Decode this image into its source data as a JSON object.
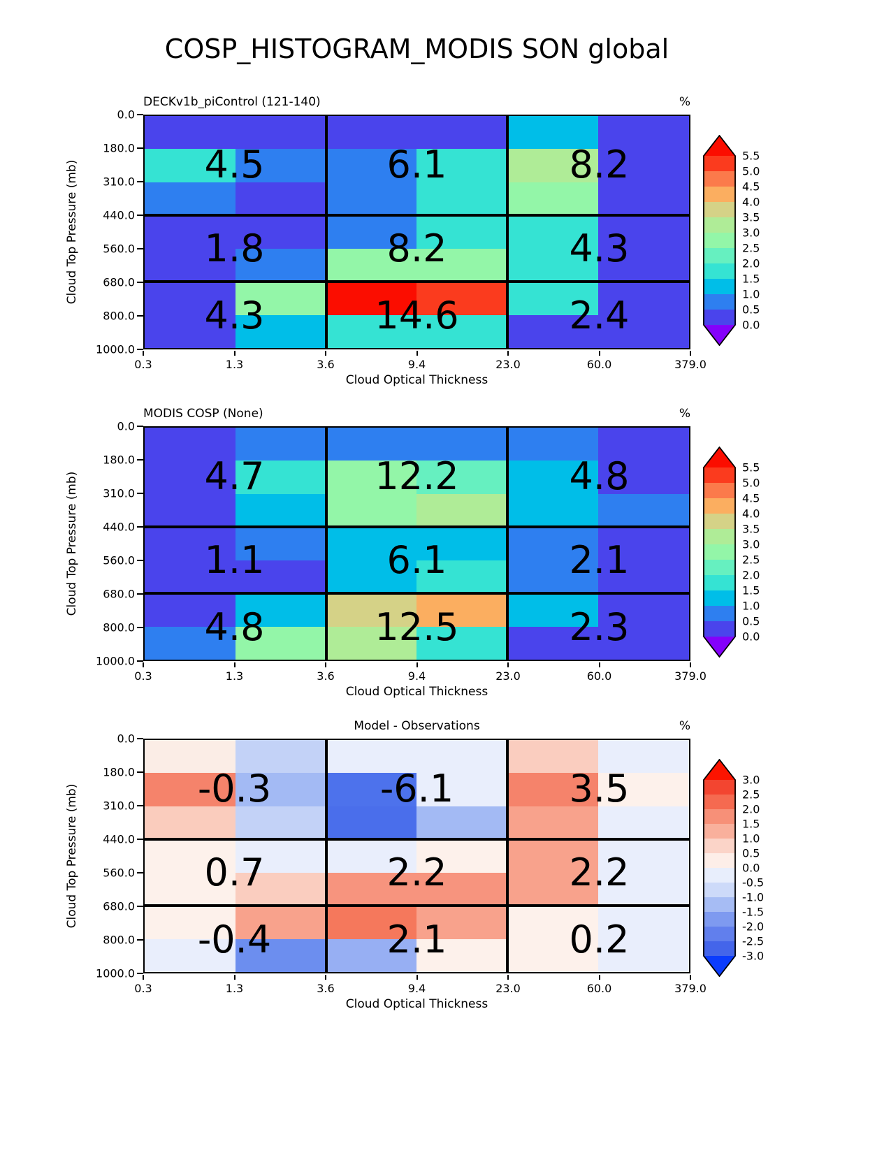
{
  "figure_title": "COSP_HISTOGRAM_MODIS SON global",
  "axes": {
    "xlabel": "Cloud Optical Thickness",
    "ylabel": "Cloud Top Pressure (mb)",
    "x_ticks": [
      "0.3",
      "1.3",
      "3.6",
      "9.4",
      "23.0",
      "60.0",
      "379.0"
    ],
    "y_ticks": [
      "0.0",
      "180.0",
      "310.0",
      "440.0",
      "560.0",
      "680.0",
      "800.0",
      "1000.0"
    ],
    "units_label": "%"
  },
  "panels": [
    {
      "title": "DECKv1b_piControl (121-140)",
      "title_align": "left",
      "values": [
        [
          "4.5",
          "6.1",
          "8.2"
        ],
        [
          "1.8",
          "8.2",
          "4.3"
        ],
        [
          "4.3",
          "14.6",
          "2.4"
        ]
      ],
      "cells": [
        [
          "#4A44EC",
          "#4A44EC",
          "#4A44EC",
          "#4A44EC",
          "#00BEE8",
          "#4A44EC"
        ],
        [
          "#35E3D3",
          "#2E7FF0",
          "#2E7FF0",
          "#35E3D3",
          "#AFEC97",
          "#4A44EC"
        ],
        [
          "#2E7FF0",
          "#4A44EC",
          "#2E7FF0",
          "#35E3D3",
          "#93F6A8",
          "#4A44EC"
        ],
        [
          "#4A44EC",
          "#4A44EC",
          "#2E7FF0",
          "#35E3D3",
          "#35E3D3",
          "#4A44EC"
        ],
        [
          "#4A44EC",
          "#2E7FF0",
          "#93F6A8",
          "#93F6A8",
          "#35E3D3",
          "#4A44EC"
        ],
        [
          "#4A44EC",
          "#93F6A8",
          "#FB0D00",
          "#FB3B1E",
          "#35E3D3",
          "#4A44EC"
        ],
        [
          "#4A44EC",
          "#00BEE8",
          "#35E3D3",
          "#35E3D3",
          "#4A44EC",
          "#4A44EC"
        ]
      ],
      "colorbar": {
        "cap_top": "#FB0D00",
        "cap_bottom": "#8400FB",
        "segments": [
          "#FB3B1E",
          "#FB7A4B",
          "#FBAE60",
          "#D5D287",
          "#AFEC97",
          "#93F6A8",
          "#66F0C0",
          "#35E3D3",
          "#00BEE8",
          "#2E7FF0",
          "#4A44EC"
        ],
        "tick_labels": [
          "5.5",
          "5.0",
          "4.5",
          "4.0",
          "3.5",
          "3.0",
          "2.5",
          "2.0",
          "1.5",
          "1.0",
          "0.5",
          "0.0"
        ]
      }
    },
    {
      "title": "MODIS COSP (None)",
      "title_align": "left",
      "values": [
        [
          "4.7",
          "12.2",
          "4.8"
        ],
        [
          "1.1",
          "6.1",
          "2.1"
        ],
        [
          "4.8",
          "12.5",
          "2.3"
        ]
      ],
      "cells": [
        [
          "#4A44EC",
          "#2E7FF0",
          "#2E7FF0",
          "#2E7FF0",
          "#2E7FF0",
          "#4A44EC"
        ],
        [
          "#4A44EC",
          "#35E3D3",
          "#93F6A8",
          "#66F0C0",
          "#00BEE8",
          "#4A44EC"
        ],
        [
          "#4A44EC",
          "#00BEE8",
          "#93F6A8",
          "#AFEC97",
          "#00BEE8",
          "#2E7FF0"
        ],
        [
          "#4A44EC",
          "#2E7FF0",
          "#00BEE8",
          "#00BEE8",
          "#2E7FF0",
          "#4A44EC"
        ],
        [
          "#4A44EC",
          "#4A44EC",
          "#00BEE8",
          "#35E3D3",
          "#2E7FF0",
          "#4A44EC"
        ],
        [
          "#4A44EC",
          "#00BEE8",
          "#D5D287",
          "#FBAE60",
          "#00BEE8",
          "#4A44EC"
        ],
        [
          "#2E7FF0",
          "#93F6A8",
          "#AFEC97",
          "#35E3D3",
          "#4A44EC",
          "#4A44EC"
        ]
      ],
      "colorbar": {
        "cap_top": "#FB0D00",
        "cap_bottom": "#8400FB",
        "segments": [
          "#FB3B1E",
          "#FB7A4B",
          "#FBAE60",
          "#D5D287",
          "#AFEC97",
          "#93F6A8",
          "#66F0C0",
          "#35E3D3",
          "#00BEE8",
          "#2E7FF0",
          "#4A44EC"
        ],
        "tick_labels": [
          "5.5",
          "5.0",
          "4.5",
          "4.0",
          "3.5",
          "3.0",
          "2.5",
          "2.0",
          "1.5",
          "1.0",
          "0.5",
          "0.0"
        ]
      }
    },
    {
      "title": "Model - Observations",
      "title_align": "center",
      "values": [
        [
          "-0.3",
          "-6.1",
          "3.5"
        ],
        [
          "0.7",
          "2.2",
          "2.2"
        ],
        [
          "-0.4",
          "2.1",
          "0.2"
        ]
      ],
      "cells": [
        [
          "#FBEDE6",
          "#C3D2F7",
          "#E9EEFC",
          "#E9EEFC",
          "#FACDBF",
          "#E9EEFC"
        ],
        [
          "#F5836B",
          "#A3BAF4",
          "#4D72EC",
          "#E9EEFC",
          "#F5836B",
          "#FDF1EB"
        ],
        [
          "#FACCBD",
          "#C3D2F7",
          "#4A6EEB",
          "#A3BAF4",
          "#F8A28C",
          "#E9EEFC"
        ],
        [
          "#FDF1EB",
          "#E9EEFC",
          "#E9EEFC",
          "#FDF1EB",
          "#F8A28C",
          "#E9EEFC"
        ],
        [
          "#FDF1EB",
          "#FACDBF",
          "#F7947E",
          "#F7947E",
          "#F8A28C",
          "#E9EEFC"
        ],
        [
          "#FDF1EB",
          "#F8A28C",
          "#F5785C",
          "#F8A28C",
          "#FDF1EB",
          "#E9EEFC"
        ],
        [
          "#E9EEFC",
          "#6C8EEF",
          "#97AFF3",
          "#FDF1EB",
          "#FDF1EB",
          "#E9EEFC"
        ]
      ],
      "colorbar": {
        "cap_top": "#FC1400",
        "cap_bottom": "#0B3CFD",
        "segments": [
          "#F34530",
          "#F56A50",
          "#F79078",
          "#F9B09C",
          "#FBD4C8",
          "#FDEEE8",
          "#E8EEFC",
          "#CDDAF9",
          "#A6BCF4",
          "#7E9AF0",
          "#617FED",
          "#4465EA"
        ],
        "tick_labels": [
          "3.0",
          "2.5",
          "2.0",
          "1.5",
          "1.0",
          "0.5",
          "0.0",
          "-0.5",
          "-1.0",
          "-1.5",
          "-2.0",
          "-2.5",
          "-3.0"
        ]
      }
    }
  ],
  "chart_data": [
    {
      "type": "heatmap",
      "title": "DECKv1b_piControl (121-140)",
      "xlabel": "Cloud Optical Thickness",
      "ylabel": "Cloud Top Pressure (mb)",
      "units": "%",
      "x_bin_edges": [
        0.3,
        1.3,
        3.6,
        9.4,
        23.0,
        60.0,
        379.0
      ],
      "y_bin_edges": [
        0.0,
        180.0,
        310.0,
        440.0,
        560.0,
        680.0,
        800.0,
        1000.0
      ],
      "colorbar_range": [
        0.0,
        5.5
      ],
      "colorbar_step": 0.5,
      "colorbar_extend": "both",
      "block_values": [
        [
          4.5,
          6.1,
          8.2
        ],
        [
          1.8,
          8.2,
          4.3
        ],
        [
          4.3,
          14.6,
          2.4
        ]
      ],
      "block_note": "3x3 block sums overlaid; blocks bounded by COT 0.3/3.6/23/379 and CTP 0/440/680/1000"
    },
    {
      "type": "heatmap",
      "title": "MODIS COSP (None)",
      "xlabel": "Cloud Optical Thickness",
      "ylabel": "Cloud Top Pressure (mb)",
      "units": "%",
      "x_bin_edges": [
        0.3,
        1.3,
        3.6,
        9.4,
        23.0,
        60.0,
        379.0
      ],
      "y_bin_edges": [
        0.0,
        180.0,
        310.0,
        440.0,
        560.0,
        680.0,
        800.0,
        1000.0
      ],
      "colorbar_range": [
        0.0,
        5.5
      ],
      "colorbar_step": 0.5,
      "colorbar_extend": "both",
      "block_values": [
        [
          4.7,
          12.2,
          4.8
        ],
        [
          1.1,
          6.1,
          2.1
        ],
        [
          4.8,
          12.5,
          2.3
        ]
      ],
      "block_note": "3x3 block sums overlaid; blocks bounded by COT 0.3/3.6/23/379 and CTP 0/440/680/1000"
    },
    {
      "type": "heatmap",
      "title": "Model - Observations",
      "xlabel": "Cloud Optical Thickness",
      "ylabel": "Cloud Top Pressure (mb)",
      "units": "%",
      "x_bin_edges": [
        0.3,
        1.3,
        3.6,
        9.4,
        23.0,
        60.0,
        379.0
      ],
      "y_bin_edges": [
        0.0,
        180.0,
        310.0,
        440.0,
        560.0,
        680.0,
        800.0,
        1000.0
      ],
      "colorbar_range": [
        -3.0,
        3.0
      ],
      "colorbar_step": 0.5,
      "colorbar_extend": "both",
      "block_values": [
        [
          -0.3,
          -6.1,
          3.5
        ],
        [
          0.7,
          2.2,
          2.2
        ],
        [
          -0.4,
          2.1,
          0.2
        ]
      ],
      "block_note": "3x3 block differences overlaid; blocks bounded by COT 0.3/3.6/23/379 and CTP 0/440/680/1000"
    }
  ]
}
